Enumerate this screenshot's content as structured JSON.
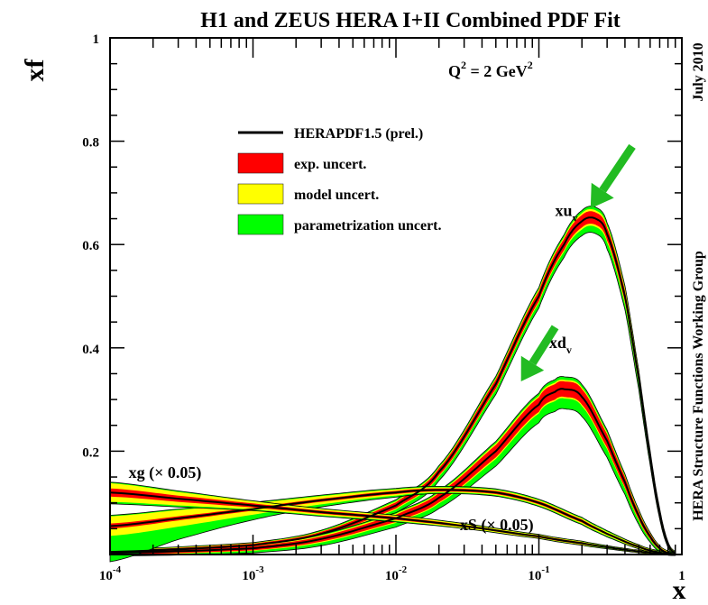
{
  "chart_data": {
    "type": "line",
    "title": "H1 and ZEUS HERA I+II Combined PDF Fit",
    "ylabel": "xf",
    "xlabel": "x",
    "x_scale": "log",
    "xlim": [
      0.0001,
      1
    ],
    "ylim": [
      0,
      1
    ],
    "x_ticks": [
      {
        "value": 0.0001,
        "base": "10",
        "exp": "-4"
      },
      {
        "value": 0.001,
        "base": "10",
        "exp": "-3"
      },
      {
        "value": 0.01,
        "base": "10",
        "exp": "-2"
      },
      {
        "value": 0.1,
        "base": "10",
        "exp": "-1"
      },
      {
        "value": 1,
        "base": "1",
        "exp": ""
      }
    ],
    "y_ticks": [
      {
        "value": 0.2,
        "label": "0.2"
      },
      {
        "value": 0.4,
        "label": "0.4"
      },
      {
        "value": 0.6,
        "label": "0.6"
      },
      {
        "value": 0.8,
        "label": "0.8"
      },
      {
        "value": 1,
        "label": "1"
      }
    ],
    "scale_annotation": {
      "base": "Q",
      "sup1": "2",
      "mid": " = 2 GeV",
      "sup2": "2"
    },
    "side_labels": [
      "July 2010",
      "HERA Structure Functions Working Group"
    ],
    "legend": {
      "placement": "top-left",
      "entries": [
        {
          "label": "HERAPDF1.5 (prel.)",
          "kind": "line",
          "color": "#000000"
        },
        {
          "label": "exp. uncert.",
          "kind": "box",
          "color": "#ff0000"
        },
        {
          "label": "model uncert.",
          "kind": "box",
          "color": "#ffff00"
        },
        {
          "label": "parametrization uncert.",
          "kind": "box",
          "color": "#00ff00"
        }
      ]
    },
    "colors": {
      "central": "#000000",
      "exp": "#ff0000",
      "model": "#ffff00",
      "param": "#00ff00",
      "arrow": "#22bb22"
    },
    "series": [
      {
        "name": "xu",
        "subscript": "v",
        "x": [
          0.0001,
          0.001,
          0.003,
          0.01,
          0.02,
          0.05,
          0.1,
          0.15,
          0.2,
          0.25,
          0.3,
          0.4,
          0.5,
          0.6,
          0.7,
          0.8,
          0.9
        ],
        "y": [
          0.005,
          0.018,
          0.04,
          0.095,
          0.16,
          0.33,
          0.5,
          0.6,
          0.645,
          0.65,
          0.62,
          0.5,
          0.34,
          0.19,
          0.08,
          0.02,
          0.003
        ],
        "exp_hw": [
          0.003,
          0.003,
          0.004,
          0.006,
          0.007,
          0.009,
          0.01,
          0.011,
          0.012,
          0.012,
          0.012,
          0.011,
          0.009,
          0.007,
          0.005,
          0.003,
          0.001
        ],
        "model_hw": [
          0.001,
          0.001,
          0.001,
          0.002,
          0.002,
          0.002,
          0.003,
          0.003,
          0.004,
          0.004,
          0.004,
          0.004,
          0.003,
          0.002,
          0.002,
          0.001,
          0.001
        ],
        "param_lo": [
          0.002,
          0.004,
          0.006,
          0.007,
          0.008,
          0.009,
          0.01,
          0.011,
          0.012,
          0.013,
          0.013,
          0.011,
          0.009,
          0.007,
          0.004,
          0.002,
          0.001
        ],
        "param_hi": [
          0.001,
          0.001,
          0.002,
          0.003,
          0.003,
          0.004,
          0.004,
          0.005,
          0.005,
          0.006,
          0.006,
          0.005,
          0.004,
          0.003,
          0.002,
          0.001,
          0.001
        ]
      },
      {
        "name": "xd",
        "subscript": "v",
        "x": [
          0.0001,
          0.001,
          0.003,
          0.01,
          0.02,
          0.05,
          0.1,
          0.13,
          0.15,
          0.2,
          0.3,
          0.4,
          0.5,
          0.6,
          0.7,
          0.8,
          0.9
        ],
        "y": [
          0.003,
          0.012,
          0.03,
          0.07,
          0.11,
          0.2,
          0.29,
          0.315,
          0.32,
          0.305,
          0.22,
          0.14,
          0.075,
          0.035,
          0.012,
          0.003,
          0.001
        ],
        "exp_hw": [
          0.003,
          0.004,
          0.005,
          0.007,
          0.009,
          0.012,
          0.014,
          0.015,
          0.015,
          0.015,
          0.013,
          0.01,
          0.007,
          0.005,
          0.003,
          0.002,
          0.001
        ],
        "model_hw": [
          0.001,
          0.001,
          0.002,
          0.002,
          0.002,
          0.003,
          0.003,
          0.003,
          0.003,
          0.003,
          0.003,
          0.002,
          0.002,
          0.001,
          0.001,
          0.001,
          0.001
        ],
        "param_lo": [
          0.002,
          0.004,
          0.006,
          0.008,
          0.01,
          0.014,
          0.018,
          0.02,
          0.02,
          0.02,
          0.016,
          0.012,
          0.008,
          0.005,
          0.003,
          0.001,
          0.001
        ],
        "param_hi": [
          0.001,
          0.001,
          0.002,
          0.002,
          0.003,
          0.004,
          0.005,
          0.006,
          0.006,
          0.006,
          0.005,
          0.004,
          0.003,
          0.002,
          0.001,
          0.001,
          0.001
        ]
      },
      {
        "name": "xS (× 0.05)",
        "subscript": "",
        "x": [
          0.0001,
          0.0003,
          0.001,
          0.003,
          0.01,
          0.02,
          0.05,
          0.1,
          0.2,
          0.3,
          0.5,
          0.7,
          0.9
        ],
        "y": [
          0.055,
          0.07,
          0.088,
          0.105,
          0.12,
          0.125,
          0.12,
          0.1,
          0.065,
          0.04,
          0.015,
          0.004,
          0.001
        ],
        "exp_hw": [
          0.005,
          0.004,
          0.003,
          0.003,
          0.003,
          0.003,
          0.003,
          0.003,
          0.003,
          0.002,
          0.002,
          0.001,
          0.001
        ],
        "model_hw": [
          0.014,
          0.012,
          0.008,
          0.005,
          0.003,
          0.002,
          0.002,
          0.002,
          0.002,
          0.002,
          0.001,
          0.001,
          0.001
        ],
        "param_lo": [
          0.05,
          0.025,
          0.01,
          0.005,
          0.003,
          0.002,
          0.002,
          0.002,
          0.002,
          0.002,
          0.001,
          0.001,
          0.001
        ],
        "param_hi": [
          0.002,
          0.002,
          0.002,
          0.002,
          0.002,
          0.002,
          0.002,
          0.002,
          0.002,
          0.002,
          0.001,
          0.001,
          0.001
        ]
      },
      {
        "name": "xg (× 0.05)",
        "subscript": "",
        "x": [
          0.0001,
          0.0003,
          0.001,
          0.003,
          0.01,
          0.03,
          0.1,
          0.2,
          0.3,
          0.5,
          0.7,
          0.9
        ],
        "y": [
          0.12,
          0.108,
          0.095,
          0.082,
          0.07,
          0.055,
          0.035,
          0.022,
          0.014,
          0.006,
          0.002,
          0.0005
        ],
        "exp_hw": [
          0.008,
          0.006,
          0.004,
          0.003,
          0.003,
          0.002,
          0.002,
          0.002,
          0.001,
          0.001,
          0.001,
          0.0005
        ],
        "model_hw": [
          0.01,
          0.007,
          0.004,
          0.003,
          0.002,
          0.002,
          0.001,
          0.001,
          0.001,
          0.001,
          0.0005,
          0.0005
        ],
        "param_lo": [
          0.004,
          0.003,
          0.002,
          0.002,
          0.002,
          0.001,
          0.001,
          0.001,
          0.001,
          0.0005,
          0.0005,
          0.0002
        ],
        "param_hi": [
          0.002,
          0.002,
          0.001,
          0.001,
          0.001,
          0.001,
          0.001,
          0.001,
          0.001,
          0.0005,
          0.0005,
          0.0002
        ]
      }
    ],
    "arrows": [
      {
        "points_to": "xu",
        "tip": [
          0.23,
          0.67
        ],
        "tail": [
          0.45,
          0.79
        ]
      },
      {
        "points_to": "xd",
        "tip": [
          0.075,
          0.335
        ],
        "tail": [
          0.13,
          0.44
        ]
      }
    ],
    "series_labels": [
      {
        "series": "xu",
        "x": 0.13,
        "y": 0.655
      },
      {
        "series": "xd",
        "x": 0.118,
        "y": 0.4
      },
      {
        "series": "xg (× 0.05)",
        "x": 0.000135,
        "y": 0.148
      },
      {
        "series": "xS (× 0.05)",
        "x": 0.028,
        "y": 0.047
      }
    ]
  }
}
